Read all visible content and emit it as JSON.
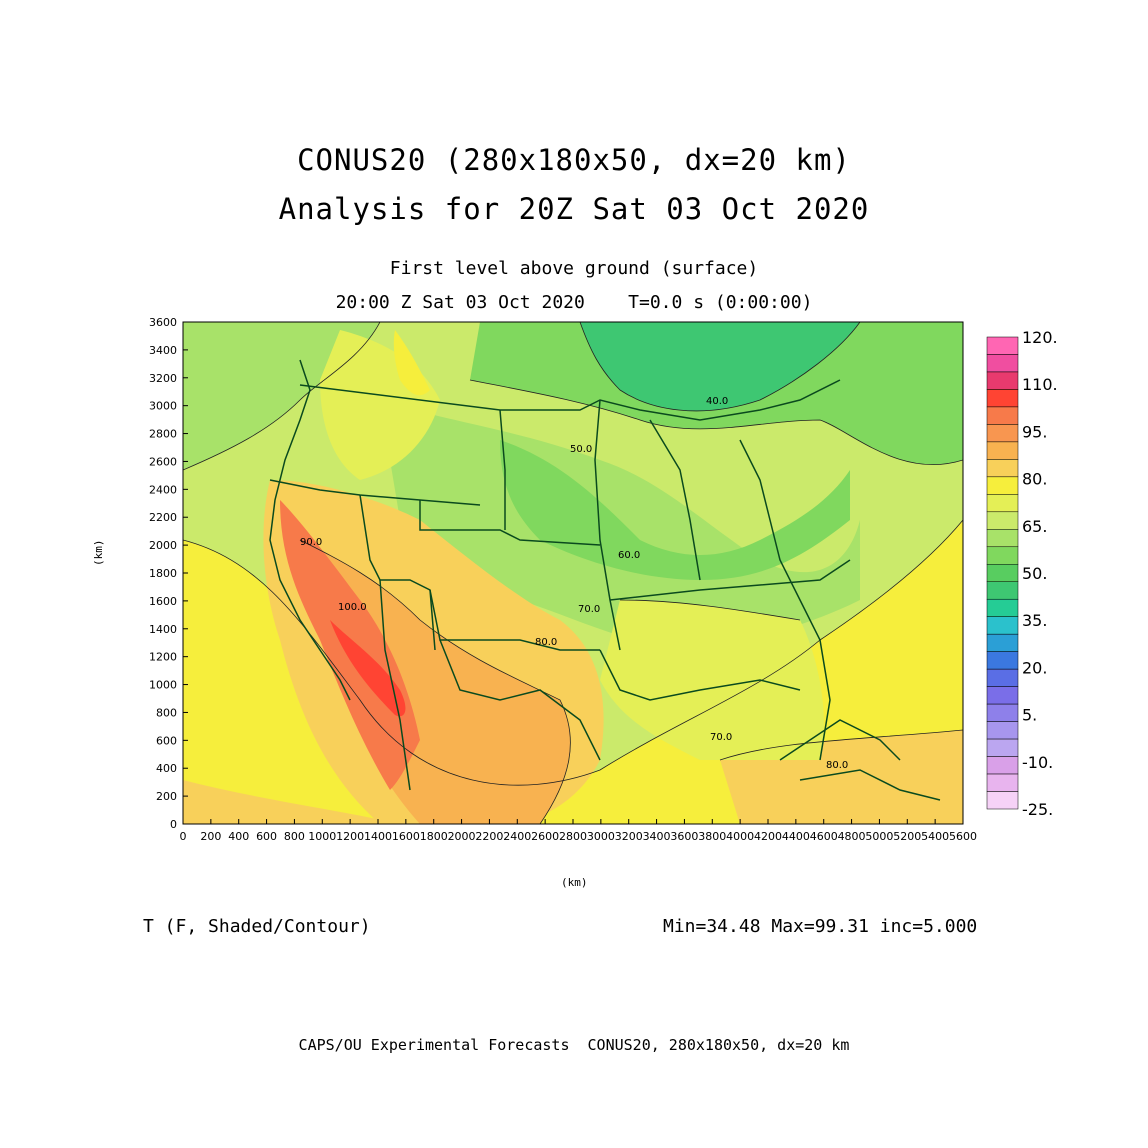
{
  "title": {
    "line1": "CONUS20 (280x180x50, dx=20 km)",
    "line2": "Analysis for 20Z Sat 03 Oct 2020"
  },
  "subtitle": {
    "level": "First level above ground (surface)",
    "valid": "20:00 Z Sat 03 Oct 2020    T=0.0 s (0:00:00)"
  },
  "axes": {
    "x_label": "(km)",
    "y_label": "(km)",
    "x_range": [
      0,
      5600
    ],
    "y_range": [
      0,
      3600
    ],
    "x_ticks": [
      "0",
      "200",
      "400",
      "600",
      "800",
      "1000",
      "1200",
      "1400",
      "1600",
      "1800",
      "2000",
      "2200",
      "2400",
      "2600",
      "2800",
      "3000",
      "3200",
      "3400",
      "3600",
      "3800",
      "4000",
      "4200",
      "4400",
      "4600",
      "4800",
      "5000",
      "5200",
      "5400",
      "5600"
    ],
    "y_ticks": [
      "0",
      "200",
      "400",
      "600",
      "800",
      "1000",
      "1200",
      "1400",
      "1600",
      "1800",
      "2000",
      "2200",
      "2400",
      "2600",
      "2800",
      "3000",
      "3200",
      "3400",
      "3600"
    ]
  },
  "colorbar": {
    "labels": [
      "120.",
      "110.",
      "95.",
      "80.",
      "65.",
      "50.",
      "35.",
      "20.",
      "5.",
      "-10.",
      "-25."
    ],
    "colors": [
      "#ff66b3",
      "#f04ea0",
      "#e83a6e",
      "#ff4433",
      "#f77a4a",
      "#f89650",
      "#f8b250",
      "#f8d05a",
      "#f6ee3c",
      "#e4ef56",
      "#cbea6b",
      "#a8e269",
      "#80d85e",
      "#58cd60",
      "#3ec772",
      "#25cc95",
      "#2bc1cc",
      "#2b9fd6",
      "#3b78e0",
      "#5a6ee5",
      "#7a6ee8",
      "#8e80ea",
      "#a796ee",
      "#bba6f0",
      "#d9a0e8",
      "#e8b4ee",
      "#f6d2f7"
    ]
  },
  "contours": {
    "labels": [
      "40.0",
      "50.0",
      "60.0",
      "70.0",
      "80.0",
      "90.0",
      "100.0"
    ]
  },
  "footer": {
    "variable": "T (F, Shaded/Contour)",
    "stats": "Min=34.48 Max=99.31 inc=5.000",
    "credit": "CAPS/OU Experimental Forecasts  CONUS20, 280x180x50, dx=20 km"
  },
  "chart_data": {
    "type": "heatmap",
    "field": "T (F)",
    "min": 34.48,
    "max": 99.31,
    "inc": 5.0,
    "xlim": [
      0,
      5600
    ],
    "ylim": [
      0,
      3600
    ]
  }
}
